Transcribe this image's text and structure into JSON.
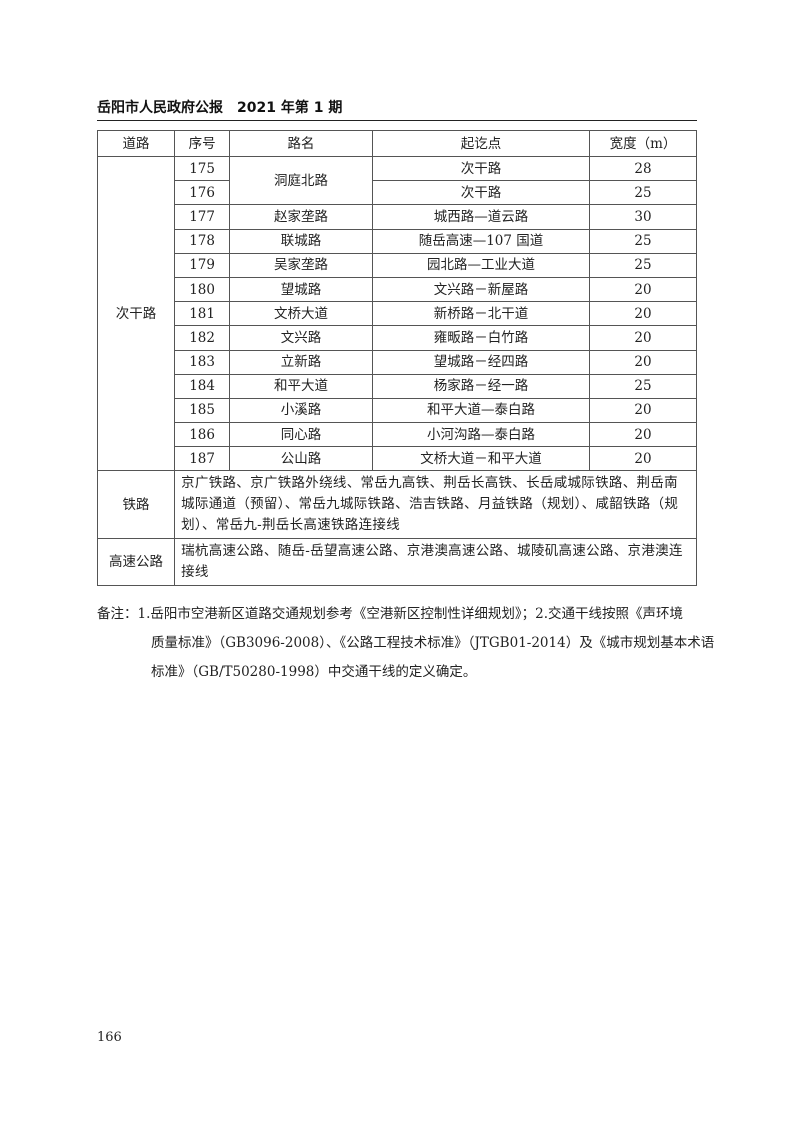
{
  "header": {
    "publication": "岳阳市人民政府公报",
    "issue": "2021 年第 1 期"
  },
  "table": {
    "columns": [
      "道路",
      "序号",
      "路名",
      "起讫点",
      "宽度（m）"
    ],
    "category": "次干路",
    "rows": [
      {
        "no": "175",
        "name": "洞庭北路",
        "span": "次干路",
        "width": "28"
      },
      {
        "no": "176",
        "name": "",
        "span": "次干路",
        "width": "25"
      },
      {
        "no": "177",
        "name": "赵家垄路",
        "span": "城西路—道云路",
        "width": "30"
      },
      {
        "no": "178",
        "name": "联城路",
        "span": "随岳高速—107 国道",
        "width": "25"
      },
      {
        "no": "179",
        "name": "吴家垄路",
        "span": "园北路—工业大道",
        "width": "25"
      },
      {
        "no": "180",
        "name": "望城路",
        "span": "文兴路－新屋路",
        "width": "20"
      },
      {
        "no": "181",
        "name": "文桥大道",
        "span": "新桥路－北干道",
        "width": "20"
      },
      {
        "no": "182",
        "name": "文兴路",
        "span": "雍畈路－白竹路",
        "width": "20"
      },
      {
        "no": "183",
        "name": "立新路",
        "span": "望城路－经四路",
        "width": "20"
      },
      {
        "no": "184",
        "name": "和平大道",
        "span": "杨家路－经一路",
        "width": "25"
      },
      {
        "no": "185",
        "name": "小溪路",
        "span": "和平大道—泰白路",
        "width": "20"
      },
      {
        "no": "186",
        "name": "同心路",
        "span": "小河沟路—泰白路",
        "width": "20"
      },
      {
        "no": "187",
        "name": "公山路",
        "span": "文桥大道－和平大道",
        "width": "20"
      }
    ],
    "railway": {
      "label": "铁路",
      "lines": [
        "京广铁路、京广铁路外绕线、常岳九高铁、荆岳长高铁、长岳咸城际铁路、荆岳南",
        "城际通道（预留）、常岳九城际铁路、浩吉铁路、月益铁路（规划）、咸韶铁路（规",
        "划）、常岳九-荆岳长高速铁路连接线"
      ]
    },
    "highway": {
      "label": "高速公路",
      "lines": [
        "瑞杭高速公路、随岳-岳望高速公路、京港澳高速公路、城陵矶高速公路、京港澳连",
        "接线"
      ]
    }
  },
  "notes": {
    "lines": [
      "备注：1.岳阳市空港新区道路交通规划参考《空港新区控制性详细规划》；2.交通干线按照《声环境",
      "质量标准》（GB3096-2008）、《公路工程技术标准》（JTGB01-2014）及《城市规划基本术语",
      "标准》（GB/T50280-1998）中交通干线的定义确定。"
    ]
  },
  "page_number": "166"
}
